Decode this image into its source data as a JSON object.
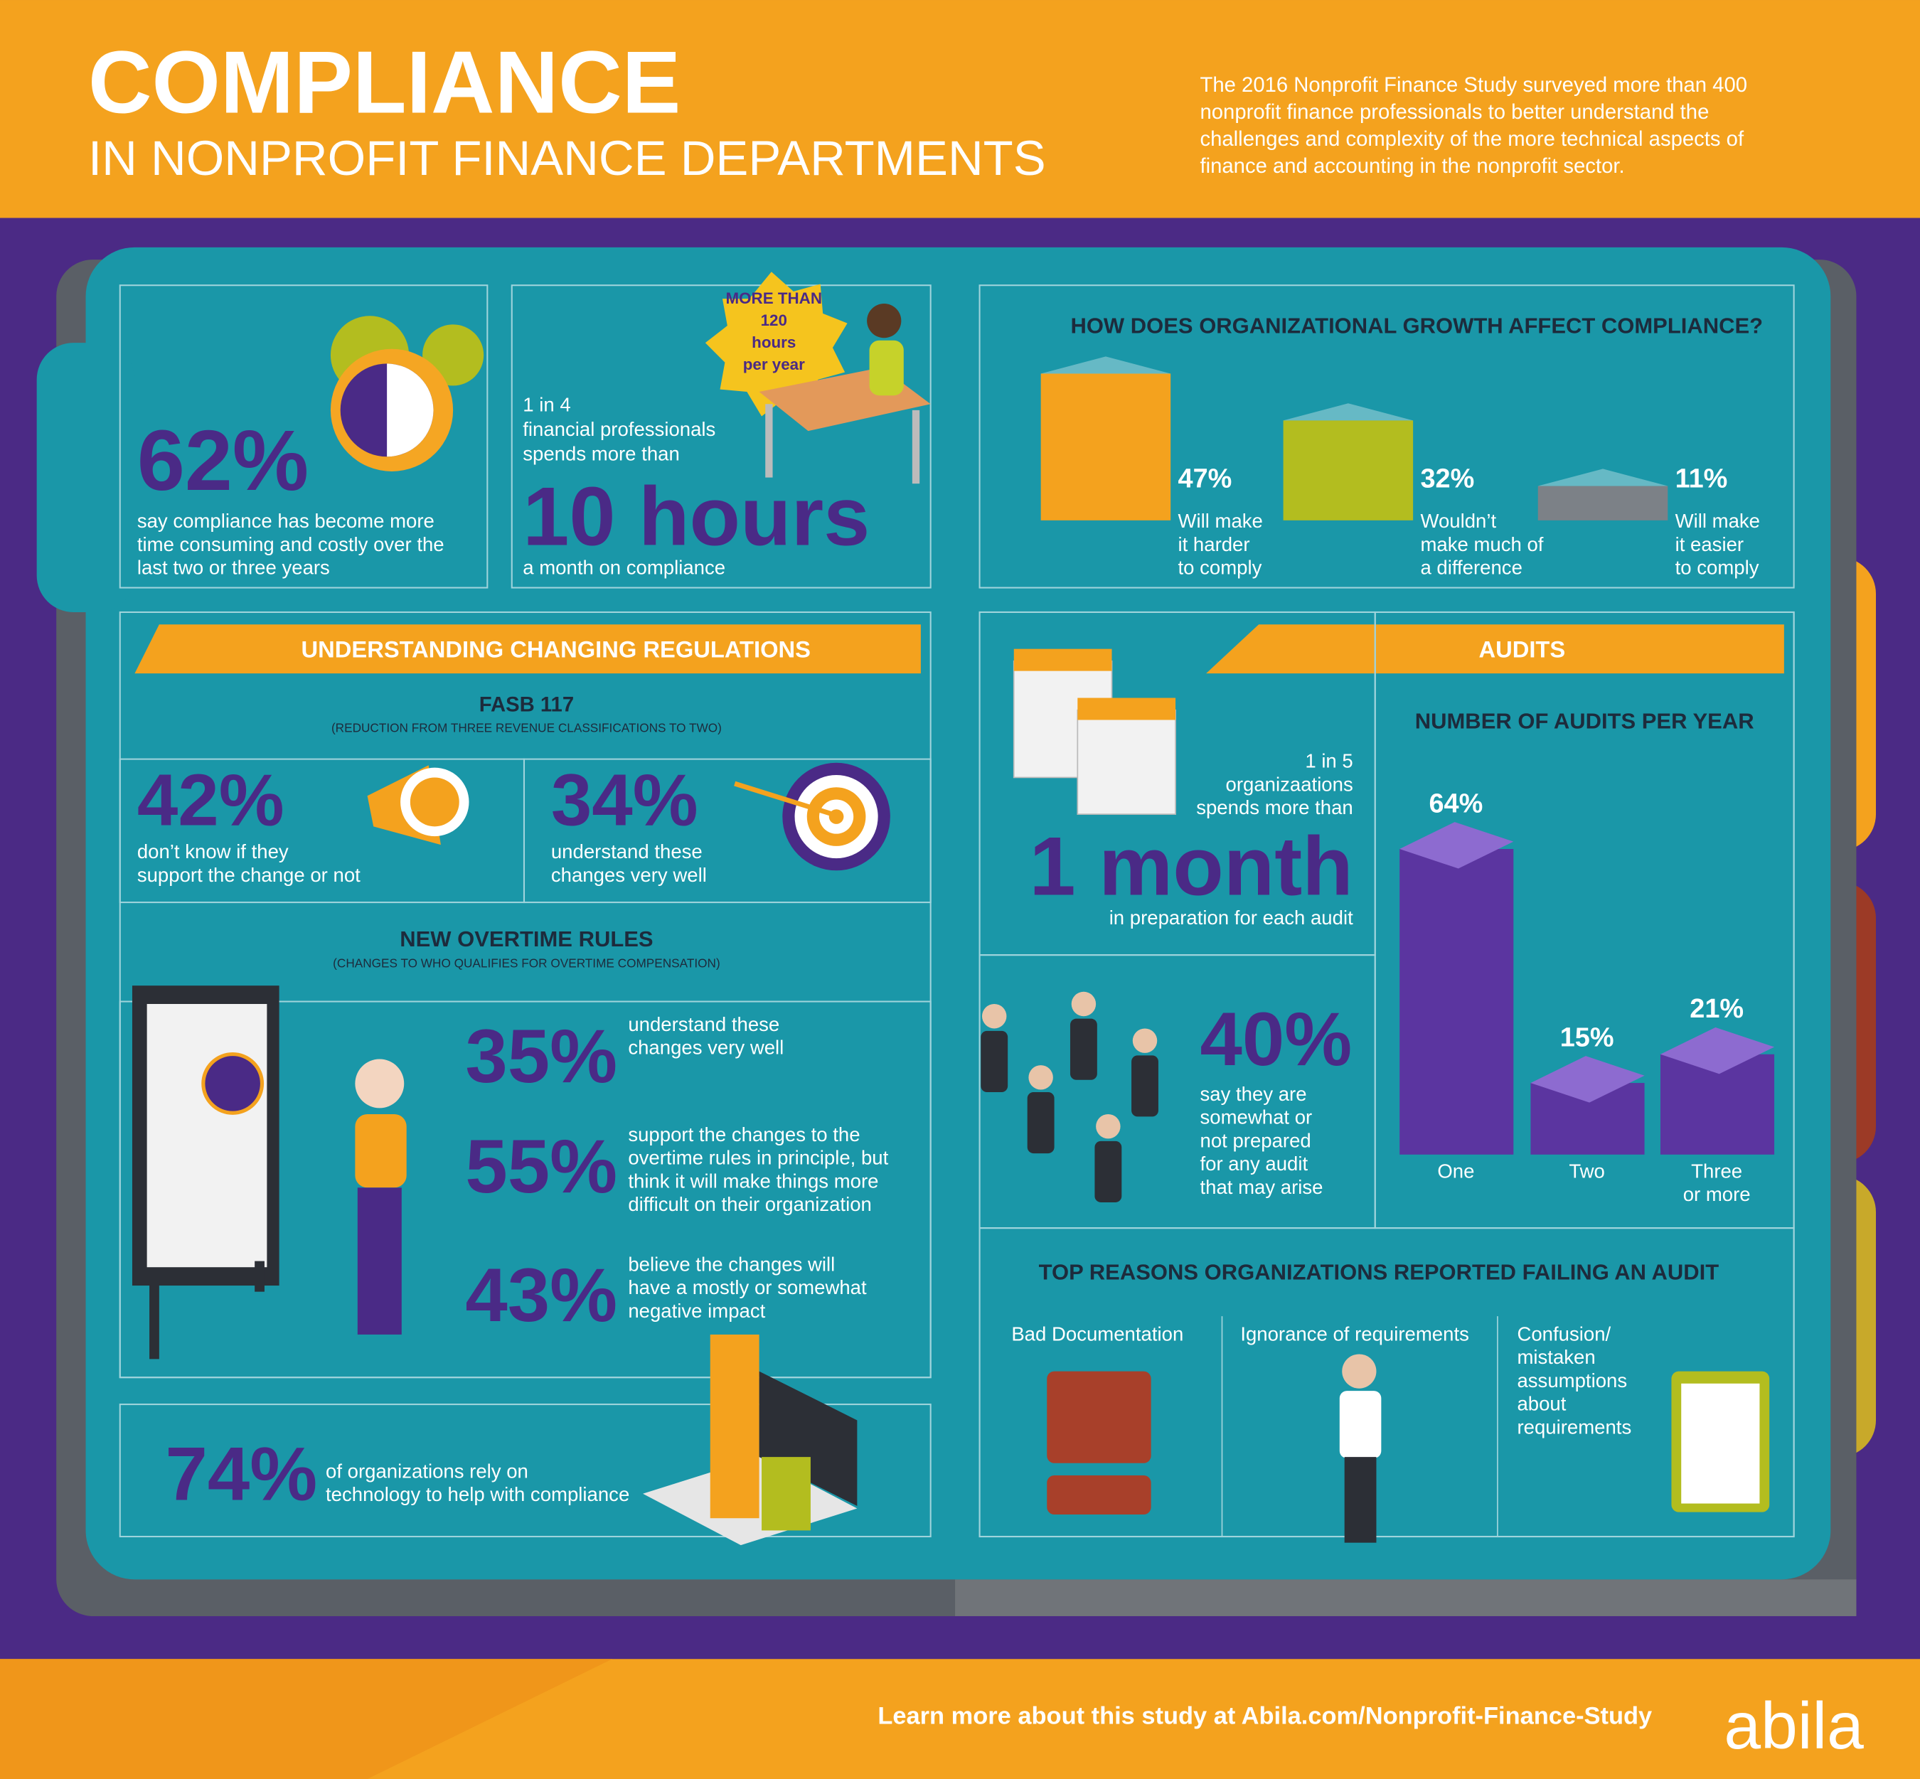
{
  "header": {
    "title": "COMPLIANCE",
    "subtitle": "IN NONPROFIT FINANCE DEPARTMENTS",
    "intro": [
      "The 2016 Nonprofit Finance Study surveyed more than 400",
      "nonprofit finance professionals to better understand the",
      "challenges and complexity of the more technical aspects of",
      "finance and accounting in the nonprofit sector."
    ]
  },
  "time": {
    "stat": "62%",
    "text": [
      "say compliance has become more",
      "time consuming and costly over the",
      "last two or three years"
    ]
  },
  "hours": {
    "badge": [
      "MORE THAN",
      "120",
      "hours",
      "per year"
    ],
    "lead": [
      "1 in 4",
      "financial professionals",
      "spends more than"
    ],
    "stat": "10 hours",
    "text": "a month on compliance"
  },
  "growth": {
    "title": "HOW DOES ORGANIZATIONAL GROWTH AFFECT COMPLIANCE?",
    "bars": [
      {
        "value": 47,
        "value_label": "47%",
        "label": [
          "Will make",
          "it harder",
          "to comply"
        ],
        "color": "#f4a21e"
      },
      {
        "value": 32,
        "value_label": "32%",
        "label": [
          "Wouldn’t",
          "make much of",
          "a difference"
        ],
        "color": "#b3bd1f"
      },
      {
        "value": 11,
        "value_label": "11%",
        "label": [
          "Will make",
          "it easier",
          "to comply"
        ],
        "color": "#7c8187"
      }
    ]
  },
  "regulations": {
    "banner": "UNDERSTANDING CHANGING REGULATIONS",
    "fasb": {
      "title": "FASB 117",
      "note": "(REDUCTION FROM THREE REVENUE CLASSIFICATIONS TO TWO)",
      "stats": [
        {
          "stat": "42%",
          "text": [
            "don’t know if they",
            "support the change or not"
          ]
        },
        {
          "stat": "34%",
          "text": [
            "understand these",
            "changes very well"
          ]
        }
      ]
    },
    "overtime": {
      "title": "NEW OVERTIME RULES",
      "note": "(CHANGES TO WHO QUALIFIES FOR OVERTIME COMPENSATION)",
      "stats": [
        {
          "stat": "35%",
          "text": [
            "understand these",
            "changes very well"
          ]
        },
        {
          "stat": "55%",
          "text": [
            "support the changes to the",
            "overtime rules in principle, but",
            "think it will make things more",
            "difficult on their organization"
          ]
        },
        {
          "stat": "43%",
          "text": [
            "believe the changes will",
            "have a mostly or somewhat",
            "negative impact"
          ]
        }
      ]
    },
    "technology": {
      "stat": "74%",
      "text": [
        "of organizations rely on",
        "technology to help with compliance"
      ]
    }
  },
  "audits": {
    "banner": "AUDITS",
    "prep": {
      "lead": [
        "1 in 5",
        "organizaations",
        "spends more than"
      ],
      "stat": "1 month",
      "text": "in preparation for each audit"
    },
    "preparedness": {
      "stat": "40%",
      "text": [
        "say they are",
        "somewhat or",
        "not prepared",
        "for any audit",
        "that may arise"
      ]
    },
    "per_year": {
      "title": "NUMBER OF AUDITS PER YEAR",
      "color": "#5b35a0",
      "bars": [
        {
          "value": 64,
          "value_label": "64%",
          "label": [
            "One"
          ]
        },
        {
          "value": 15,
          "value_label": "15%",
          "label": [
            "Two"
          ]
        },
        {
          "value": 21,
          "value_label": "21%",
          "label": [
            "Three",
            "or more"
          ]
        }
      ]
    },
    "failing": {
      "title": "TOP REASONS ORGANIZATIONS REPORTED FAILING AN AUDIT",
      "reasons": [
        [
          "Bad Documentation"
        ],
        [
          "Ignorance of requirements"
        ],
        [
          "Confusion/",
          "mistaken",
          "assumptions",
          "about",
          "requirements"
        ]
      ]
    }
  },
  "footer": {
    "link": "Learn more about this study at Abila.com/Nonprofit-Finance-Study",
    "logo": "abila"
  }
}
